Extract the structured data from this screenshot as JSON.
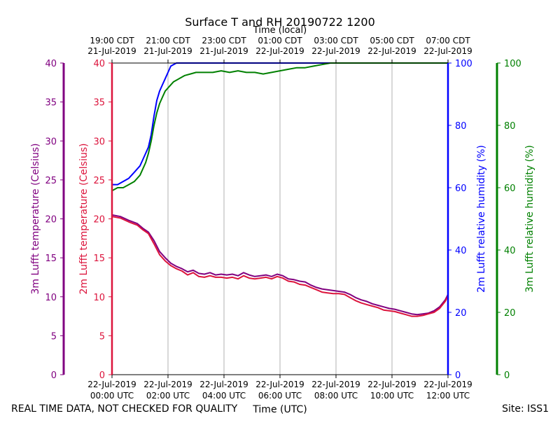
{
  "chart_data": {
    "type": "line",
    "title": "Surface T and RH 20190722 1200",
    "top_axis_label": "Time (local)",
    "xlabel": "Time (UTC)",
    "footer_left": "REAL TIME DATA, NOT CHECKED FOR QUALITY",
    "footer_right": "Site: ISS1",
    "x_hours": [
      0,
      2,
      4,
      6,
      8,
      10,
      12
    ],
    "xlim": [
      0,
      12
    ],
    "utc_ticks": [
      [
        "22-Jul-2019",
        "00:00 UTC"
      ],
      [
        "22-Jul-2019",
        "02:00 UTC"
      ],
      [
        "22-Jul-2019",
        "04:00 UTC"
      ],
      [
        "22-Jul-2019",
        "06:00 UTC"
      ],
      [
        "22-Jul-2019",
        "08:00 UTC"
      ],
      [
        "22-Jul-2019",
        "10:00 UTC"
      ],
      [
        "22-Jul-2019",
        "12:00 UTC"
      ]
    ],
    "local_ticks": [
      [
        "19:00 CDT",
        "21-Jul-2019"
      ],
      [
        "21:00 CDT",
        "21-Jul-2019"
      ],
      [
        "23:00 CDT",
        "21-Jul-2019"
      ],
      [
        "01:00 CDT",
        "22-Jul-2019"
      ],
      [
        "03:00 CDT",
        "22-Jul-2019"
      ],
      [
        "05:00 CDT",
        "22-Jul-2019"
      ],
      [
        "07:00 CDT",
        "22-Jul-2019"
      ]
    ],
    "axes": [
      {
        "id": "t3m",
        "label": "3m Lufft temperature (Celsius)",
        "color": "#800080",
        "ticks": [
          0,
          5,
          10,
          15,
          20,
          25,
          30,
          35,
          40
        ],
        "ylim": [
          0,
          40
        ]
      },
      {
        "id": "t2m",
        "label": "2m Lufft temperature (Celsius)",
        "color": "#dc143c",
        "ticks": [
          0,
          5,
          10,
          15,
          20,
          25,
          30,
          35,
          40
        ],
        "ylim": [
          0,
          40
        ]
      },
      {
        "id": "rh2m",
        "label": "2m Lufft relative humidity (%)",
        "color": "#0000ff",
        "ticks": [
          0,
          20,
          40,
          60,
          80,
          100
        ],
        "ylim": [
          0,
          100
        ]
      },
      {
        "id": "rh3m",
        "label": "3m Lufft relative humidity (%)",
        "color": "#008000",
        "ticks": [
          0,
          20,
          40,
          60,
          80,
          100
        ],
        "ylim": [
          0,
          100
        ]
      }
    ],
    "series": [
      {
        "name": "3m Lufft temperature",
        "axis": "t3m",
        "color": "#800080",
        "x": [
          0,
          0.3,
          0.6,
          0.9,
          1.1,
          1.3,
          1.5,
          1.7,
          1.9,
          2.1,
          2.3,
          2.5,
          2.7,
          2.9,
          3.1,
          3.3,
          3.5,
          3.7,
          3.9,
          4.1,
          4.3,
          4.5,
          4.7,
          4.9,
          5.1,
          5.3,
          5.5,
          5.7,
          5.9,
          6.1,
          6.3,
          6.5,
          6.7,
          6.9,
          7.1,
          7.3,
          7.5,
          7.7,
          7.9,
          8.1,
          8.3,
          8.5,
          8.7,
          8.9,
          9.1,
          9.3,
          9.5,
          9.7,
          9.9,
          10.1,
          10.3,
          10.5,
          10.7,
          10.9,
          11.1,
          11.3,
          11.5,
          11.7,
          11.9,
          12
        ],
        "values": [
          20.5,
          20.3,
          19.8,
          19.4,
          18.8,
          18.3,
          17.2,
          15.8,
          15.0,
          14.3,
          13.9,
          13.6,
          13.2,
          13.4,
          13.0,
          12.9,
          13.1,
          12.8,
          12.9,
          12.8,
          12.9,
          12.7,
          13.1,
          12.8,
          12.6,
          12.7,
          12.8,
          12.6,
          12.9,
          12.7,
          12.3,
          12.2,
          12.0,
          11.9,
          11.5,
          11.2,
          11.0,
          10.9,
          10.8,
          10.7,
          10.6,
          10.3,
          9.9,
          9.6,
          9.4,
          9.1,
          8.9,
          8.7,
          8.5,
          8.4,
          8.2,
          8.0,
          7.8,
          7.7,
          7.8,
          7.9,
          8.2,
          8.7,
          9.6,
          10.3
        ]
      },
      {
        "name": "2m Lufft temperature",
        "axis": "t2m",
        "color": "#dc143c",
        "x": [
          0,
          0.3,
          0.6,
          0.9,
          1.1,
          1.3,
          1.5,
          1.7,
          1.9,
          2.1,
          2.3,
          2.5,
          2.7,
          2.9,
          3.1,
          3.3,
          3.5,
          3.7,
          3.9,
          4.1,
          4.3,
          4.5,
          4.7,
          4.9,
          5.1,
          5.3,
          5.5,
          5.7,
          5.9,
          6.1,
          6.3,
          6.5,
          6.7,
          6.9,
          7.1,
          7.3,
          7.5,
          7.7,
          7.9,
          8.1,
          8.3,
          8.5,
          8.7,
          8.9,
          9.1,
          9.3,
          9.5,
          9.7,
          9.9,
          10.1,
          10.3,
          10.5,
          10.7,
          10.9,
          11.1,
          11.3,
          11.5,
          11.7,
          11.9,
          12
        ],
        "values": [
          20.3,
          20.1,
          19.6,
          19.2,
          18.6,
          18.1,
          16.8,
          15.4,
          14.6,
          14.0,
          13.6,
          13.3,
          12.8,
          13.1,
          12.6,
          12.5,
          12.7,
          12.5,
          12.5,
          12.4,
          12.5,
          12.3,
          12.7,
          12.4,
          12.3,
          12.4,
          12.5,
          12.3,
          12.6,
          12.4,
          12.0,
          11.9,
          11.6,
          11.5,
          11.2,
          10.9,
          10.6,
          10.5,
          10.4,
          10.4,
          10.3,
          9.9,
          9.5,
          9.2,
          9.0,
          8.8,
          8.6,
          8.3,
          8.2,
          8.1,
          7.9,
          7.7,
          7.5,
          7.5,
          7.6,
          7.8,
          8.0,
          8.5,
          9.4,
          10.1
        ]
      },
      {
        "name": "2m Lufft relative humidity",
        "axis": "rh2m",
        "color": "#0000ff",
        "x": [
          0,
          0.2,
          0.4,
          0.6,
          0.8,
          1.0,
          1.1,
          1.2,
          1.3,
          1.4,
          1.5,
          1.6,
          1.7,
          1.8,
          1.9,
          2.0,
          2.1,
          2.3,
          2.6,
          3.0,
          12
        ],
        "values": [
          61,
          61,
          62,
          63,
          65,
          67,
          69,
          71,
          73,
          77,
          83,
          88,
          91,
          93,
          95,
          97,
          99,
          100,
          100,
          100,
          100
        ]
      },
      {
        "name": "3m Lufft relative humidity",
        "axis": "rh3m",
        "color": "#008000",
        "x": [
          0,
          0.2,
          0.4,
          0.6,
          0.8,
          1.0,
          1.1,
          1.2,
          1.3,
          1.4,
          1.5,
          1.6,
          1.7,
          1.8,
          1.9,
          2.0,
          2.2,
          2.4,
          2.6,
          2.8,
          3.0,
          3.3,
          3.6,
          3.9,
          4.2,
          4.5,
          4.8,
          5.1,
          5.4,
          5.7,
          6.0,
          6.3,
          6.6,
          6.9,
          7.2,
          7.5,
          7.8,
          8.1,
          8.4,
          8.7,
          9.0,
          9.5,
          10.0,
          10.5,
          11.0,
          11.5,
          12
        ],
        "values": [
          59,
          60,
          60,
          61,
          62,
          64,
          66,
          68,
          71,
          75,
          80,
          84,
          87,
          89,
          91,
          92,
          94,
          95,
          96,
          96.5,
          97,
          97,
          97,
          97.5,
          97,
          97.5,
          97,
          97,
          96.5,
          97,
          97.5,
          98,
          98.5,
          98.5,
          99,
          99.5,
          100,
          100,
          100,
          100,
          100,
          100,
          100,
          100,
          100,
          100,
          100
        ]
      }
    ]
  }
}
